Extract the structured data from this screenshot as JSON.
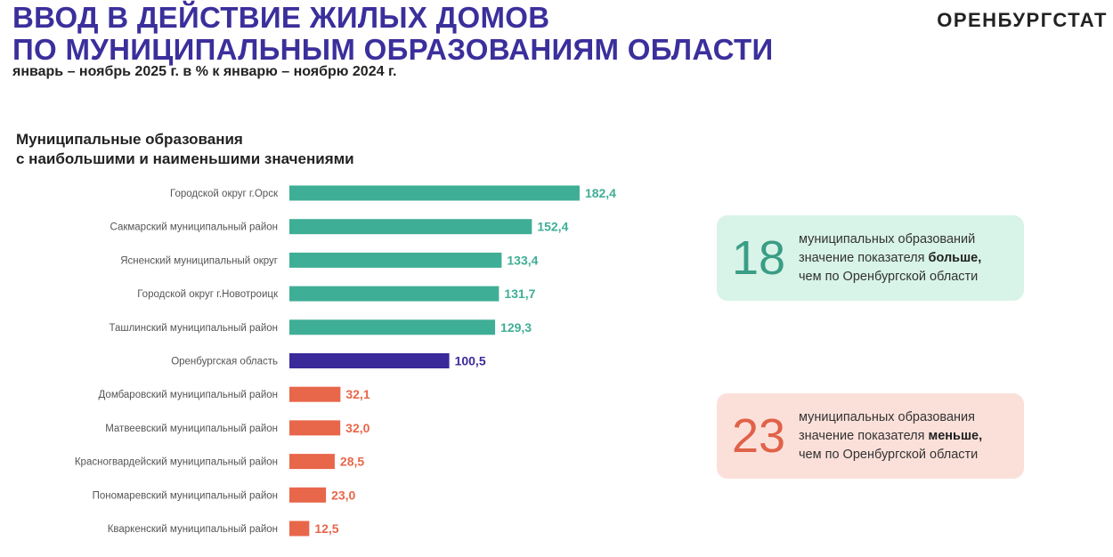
{
  "header": {
    "title_line1": "ВВОД В ДЕЙСТВИЕ ЖИЛЫХ ДОМОВ",
    "title_line2": "ПО МУНИЦИПАЛЬНЫМ ОБРАЗОВАНИЯМ ОБЛАСТИ",
    "subtitle": "январь – ноябрь 2025 г. в % к январю – ноябрю 2024 г.",
    "brand": "ОРЕНБУРГСТАТ"
  },
  "chart_data": {
    "type": "bar",
    "orientation": "horizontal",
    "title_line1": "Муниципальные образования",
    "title_line2": "с наибольшими и наименьшими значениями",
    "categories": [
      "Городской округ г.Орск",
      "Сакмарский муниципальный район",
      "Ясненский муниципальный округ",
      "Городской округ г.Новотроицк",
      "Ташлинский муниципальный район",
      "Оренбургская область",
      "Домбаровский муниципальный район",
      "Матвеевский муниципальный район",
      "Красногвардейский муниципальный район",
      "Пономаревский муниципальный район",
      "Кваркенский муниципальный район"
    ],
    "values": [
      182.4,
      152.4,
      133.4,
      131.7,
      129.3,
      100.5,
      32.1,
      32.0,
      28.5,
      23.0,
      12.5
    ],
    "value_labels": [
      "182,4",
      "152,4",
      "133,4",
      "131,7",
      "129,3",
      "100,5",
      "32,1",
      "32,0",
      "28,5",
      "23,0",
      "12,5"
    ],
    "groups": [
      "above",
      "above",
      "above",
      "above",
      "above",
      "region",
      "below",
      "below",
      "below",
      "below",
      "below"
    ],
    "colors": {
      "above": "#3fae96",
      "region": "#3a2a9a",
      "below": "#e8664a"
    },
    "grid": false
  },
  "boxes": {
    "above": {
      "number": "18",
      "line1": "муниципальных образований",
      "line2": "значение показателя ",
      "bold": "больше,",
      "line3": "чем по Оренбургской области",
      "bg": "#d8f3e7",
      "color": "#3a9d86"
    },
    "below": {
      "number": "23",
      "line1": "муниципальных образования",
      "line2": "значение показателя ",
      "bold": "меньше,",
      "line3": "чем по Оренбургской области",
      "bg": "#fbe0da",
      "color": "#e06248"
    }
  }
}
